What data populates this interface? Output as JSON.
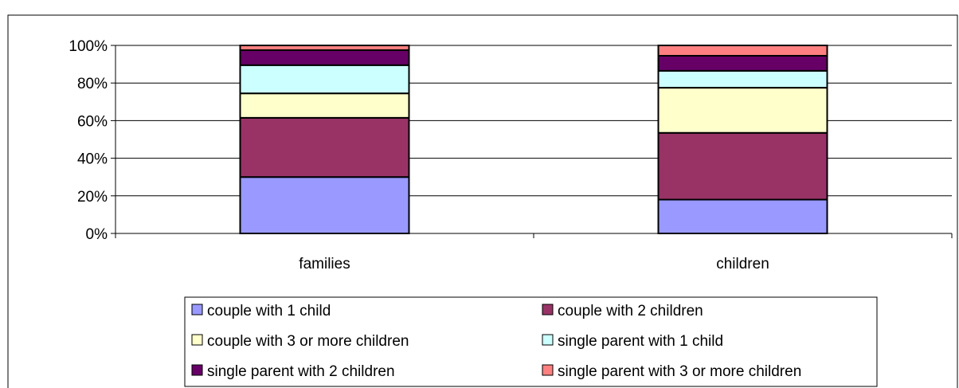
{
  "chart_data": {
    "type": "bar",
    "stacked": true,
    "title": "",
    "xlabel": "",
    "ylabel": "",
    "categories": [
      "families",
      "children"
    ],
    "ylim": [
      0,
      100
    ],
    "y_ticks": [
      "0%",
      "20%",
      "40%",
      "60%",
      "80%",
      "100%"
    ],
    "grid": true,
    "legend_position": "bottom",
    "series": [
      {
        "name": "couple with 1 child",
        "values": [
          30,
          18
        ],
        "color": "#9999ff"
      },
      {
        "name": "couple with 2 children",
        "values": [
          31.5,
          35.5
        ],
        "color": "#993366"
      },
      {
        "name": "couple with 3 or more children",
        "values": [
          13,
          24
        ],
        "color": "#ffffcc"
      },
      {
        "name": "single parent with 1 child",
        "values": [
          15,
          9
        ],
        "color": "#ccffff"
      },
      {
        "name": "single parent with 2 children",
        "values": [
          8,
          8
        ],
        "color": "#660066"
      },
      {
        "name": "single parent with 3 or more children",
        "values": [
          2.5,
          5.5
        ],
        "color": "#ff8080"
      }
    ]
  }
}
